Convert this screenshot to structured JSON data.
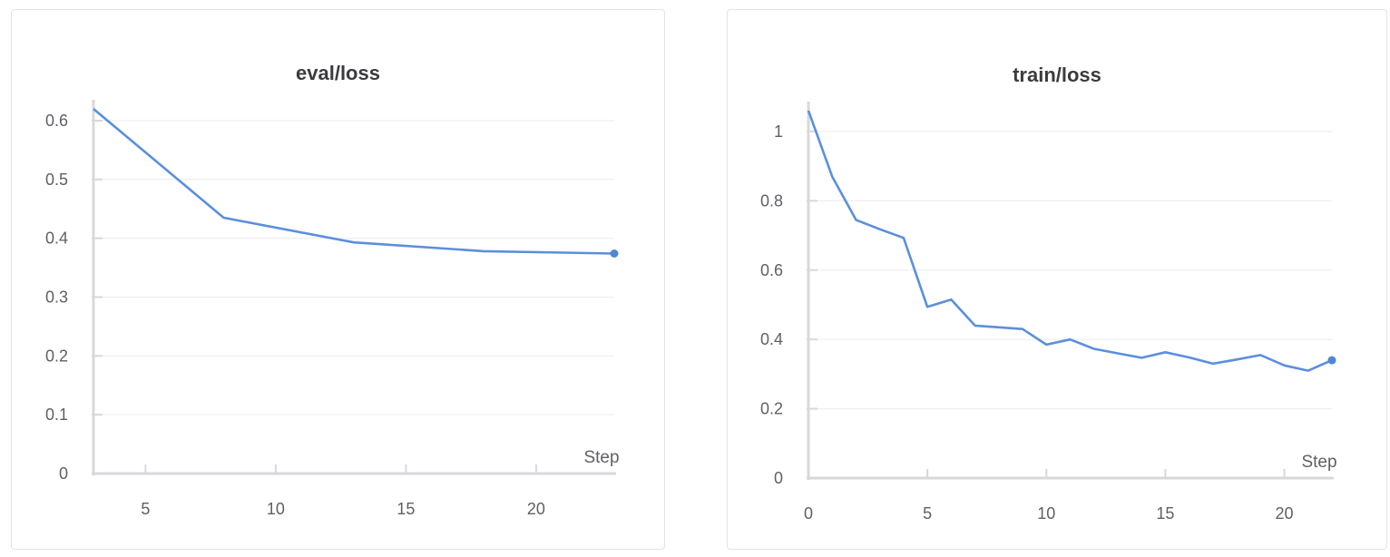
{
  "colors": {
    "series": "#5b8fdc",
    "grid": "#ececef",
    "axis": "#d8d8dc",
    "text": "#5f5f66",
    "title": "#3b3b40"
  },
  "chart_data": [
    {
      "type": "line",
      "title": "eval/loss",
      "xlabel": "Step",
      "ylabel": "",
      "xlim": [
        3,
        23
      ],
      "ylim": [
        0,
        0.62
      ],
      "xticks": [
        5,
        10,
        15,
        20
      ],
      "yticks": [
        0,
        0.1,
        0.2,
        0.3,
        0.4,
        0.5,
        0.6
      ],
      "grid": true,
      "x": [
        3,
        8,
        13,
        18,
        23
      ],
      "values": [
        0.62,
        0.435,
        0.393,
        0.378,
        0.374
      ]
    },
    {
      "type": "line",
      "title": "train/loss",
      "xlabel": "Step",
      "ylabel": "",
      "xlim": [
        0,
        22
      ],
      "ylim": [
        0,
        1.06
      ],
      "xticks": [
        0,
        5,
        10,
        15,
        20
      ],
      "yticks": [
        0,
        0.2,
        0.4,
        0.6,
        0.8,
        1
      ],
      "grid": true,
      "x": [
        0,
        1,
        2,
        3,
        4,
        5,
        6,
        7,
        8,
        9,
        10,
        11,
        12,
        13,
        14,
        15,
        16,
        17,
        18,
        19,
        20,
        21,
        22
      ],
      "values": [
        1.06,
        0.87,
        0.745,
        0.718,
        0.693,
        0.494,
        0.515,
        0.44,
        0.435,
        0.43,
        0.385,
        0.4,
        0.373,
        0.36,
        0.347,
        0.363,
        0.348,
        0.33,
        0.342,
        0.355,
        0.325,
        0.31,
        0.34
      ]
    }
  ]
}
